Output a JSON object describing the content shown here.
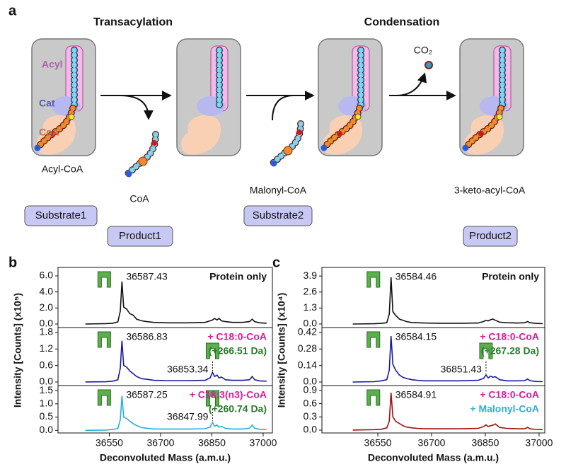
{
  "panel_a": {
    "label": "a",
    "titles": [
      "Transacylation",
      "Condensation"
    ],
    "domain_labels": [
      "Acyl",
      "Cat",
      "CoA"
    ],
    "molecules": [
      "Acyl-CoA",
      "CoA",
      "Malonyl-CoA",
      "3-keto-acyl-CoA"
    ],
    "roles": [
      "Substrate1",
      "Product1",
      "Substrate2",
      "Product2"
    ],
    "co2": "CO₂"
  },
  "chart_data": [
    {
      "type": "line",
      "label": "b",
      "ylabel": "Intensity [Counts] (x10⁵)",
      "xlabel": "Deconvoluted Mass (a.m.u.)",
      "xlim": [
        36400,
        37027
      ],
      "xticks": [
        36550,
        36700,
        36850,
        37000
      ],
      "x": [
        36480,
        36540,
        36560,
        36575,
        36582,
        36587,
        36592,
        36600,
        36610,
        36620,
        36630,
        36645,
        36660,
        36680,
        36720,
        36780,
        36830,
        36845,
        36852,
        36858,
        36865,
        36871,
        36878,
        36890,
        36910,
        36940,
        36960,
        36968,
        36975,
        36990,
        37010
      ],
      "subplots": [
        {
          "color": "#111111",
          "ylim": [
            -0.44,
            7.06
          ],
          "yticks": [
            {
              "value": 0,
              "label": "0.0"
            },
            {
              "value": 2,
              "label": "2.0"
            },
            {
              "value": 4,
              "label": "4.0"
            },
            {
              "value": 6,
              "label": "6.0"
            }
          ],
          "values": [
            0,
            0.05,
            0.1,
            0.27,
            1.6,
            5.3,
            2.1,
            1.9,
            1.3,
            1.1,
            0.6,
            0.4,
            0.3,
            0.2,
            0.15,
            0.15,
            0.2,
            0.4,
            0.5,
            0.7,
            0.5,
            0.7,
            0.4,
            0.3,
            0.2,
            0.2,
            0.3,
            0.6,
            0.3,
            0.15,
            0.1
          ],
          "peak_labels": [
            "36587.43"
          ],
          "notes": [
            {
              "text": "Protein only",
              "color": "#111111"
            }
          ]
        },
        {
          "color": "#1a1aa0",
          "ylim": [
            -0.13,
            1.98
          ],
          "yticks": [
            {
              "value": 0,
              "label": "0.0"
            },
            0.6,
            1.2,
            1.8
          ],
          "values": [
            0,
            0.01,
            0.03,
            0.08,
            0.5,
            1.5,
            0.6,
            0.55,
            0.4,
            0.3,
            0.2,
            0.12,
            0.1,
            0.06,
            0.05,
            0.05,
            0.06,
            0.15,
            0.35,
            0.2,
            0.25,
            0.15,
            0.18,
            0.08,
            0.06,
            0.06,
            0.08,
            0.2,
            0.08,
            0.04,
            0.03
          ],
          "peak_labels": [
            "36586.83",
            "36853.34"
          ],
          "notes": [
            {
              "text": "+ C18:0-CoA",
              "color": "#e0179a"
            },
            {
              "text": "(+266.51 Da)",
              "color": "#2a7a2a"
            }
          ]
        },
        {
          "color": "#2ab0d0",
          "ylim": [
            -0.1,
            1.69
          ],
          "yticks": [
            {
              "value": 0,
              "label": "0.0"
            },
            0.5,
            {
              "value": 1,
              "label": "1.0"
            },
            1.5
          ],
          "values": [
            0,
            0.01,
            0.03,
            0.07,
            0.4,
            1.3,
            0.5,
            0.45,
            0.35,
            0.25,
            0.18,
            0.1,
            0.08,
            0.05,
            0.05,
            0.05,
            0.06,
            0.12,
            0.3,
            0.15,
            0.2,
            0.12,
            0.15,
            0.07,
            0.05,
            0.05,
            0.08,
            0.2,
            0.08,
            0.04,
            0.03
          ],
          "peak_labels": [
            "36587.25",
            "36847.99"
          ],
          "notes": [
            {
              "text": "+ C18:3(n3)-CoA",
              "color": "#e0179a"
            },
            {
              "text": "(+260.74 Da)",
              "color": "#2a7a2a"
            }
          ]
        }
      ]
    },
    {
      "type": "line",
      "label": "c",
      "ylabel": "Intensity [Counts] (x10⁴)",
      "xlabel": "Deconvoluted Mass (a.m.u.)",
      "xlim": [
        36394,
        37016
      ],
      "xticks": [
        36550,
        36700,
        36850,
        37000
      ],
      "x": [
        36480,
        36540,
        36560,
        36575,
        36582,
        36587,
        36592,
        36600,
        36610,
        36620,
        36630,
        36645,
        36660,
        36680,
        36720,
        36780,
        36830,
        36845,
        36852,
        36858,
        36865,
        36871,
        36878,
        36890,
        36910,
        36940,
        36960,
        36968,
        36975,
        36990,
        37010
      ],
      "subplots": [
        {
          "color": "#111111",
          "ylim": [
            -0.29,
            4.6
          ],
          "yticks": [
            {
              "value": 0,
              "label": "0.0"
            },
            1.3,
            2.6,
            3.9
          ],
          "values": [
            0,
            0.02,
            0.05,
            0.1,
            0.8,
            3.8,
            1.0,
            0.7,
            0.4,
            0.3,
            0.2,
            0.12,
            0.1,
            0.08,
            0.06,
            0.06,
            0.08,
            0.2,
            0.3,
            0.25,
            0.35,
            0.4,
            0.3,
            0.15,
            0.1,
            0.08,
            0.1,
            0.2,
            0.1,
            0.05,
            0.03
          ],
          "peak_labels": [
            "36584.46"
          ],
          "notes": [
            {
              "text": "Protein only",
              "color": "#111111"
            }
          ]
        },
        {
          "color": "#1a1aa0",
          "ylim": [
            -0.03,
            0.462
          ],
          "yticks": [
            {
              "value": 0,
              "label": "0.0"
            },
            0.14,
            0.28,
            0.42
          ],
          "values": [
            0,
            0.003,
            0.01,
            0.02,
            0.1,
            0.39,
            0.15,
            0.1,
            0.06,
            0.04,
            0.03,
            0.02,
            0.015,
            0.01,
            0.01,
            0.01,
            0.015,
            0.03,
            0.06,
            0.035,
            0.05,
            0.04,
            0.045,
            0.02,
            0.01,
            0.01,
            0.012,
            0.025,
            0.012,
            0.005,
            0.003
          ],
          "peak_labels": [
            "36584.15",
            "36851.43"
          ],
          "notes": [
            {
              "text": "+ C18:0-CoA",
              "color": "#e0179a"
            },
            {
              "text": "(+267.28 Da)",
              "color": "#2a7a2a"
            }
          ]
        },
        {
          "color": "#a01010",
          "ylim": [
            -0.065,
            1.01
          ],
          "yticks": [
            {
              "value": 0,
              "label": "0.0"
            },
            0.3,
            0.6,
            0.9
          ],
          "values": [
            0,
            0.01,
            0.02,
            0.05,
            0.2,
            0.85,
            0.3,
            0.2,
            0.15,
            0.1,
            0.07,
            0.05,
            0.04,
            0.03,
            0.03,
            0.03,
            0.04,
            0.08,
            0.12,
            0.08,
            0.1,
            0.11,
            0.14,
            0.06,
            0.04,
            0.03,
            0.03,
            0.06,
            0.03,
            0.015,
            0.01
          ],
          "peak_labels": [
            "36584.91"
          ],
          "notes": [
            {
              "text": "+ C18:0-CoA",
              "color": "#e0179a"
            },
            {
              "text": "+ Malonyl-CoA",
              "color": "#2ab0d8"
            }
          ]
        }
      ]
    }
  ]
}
